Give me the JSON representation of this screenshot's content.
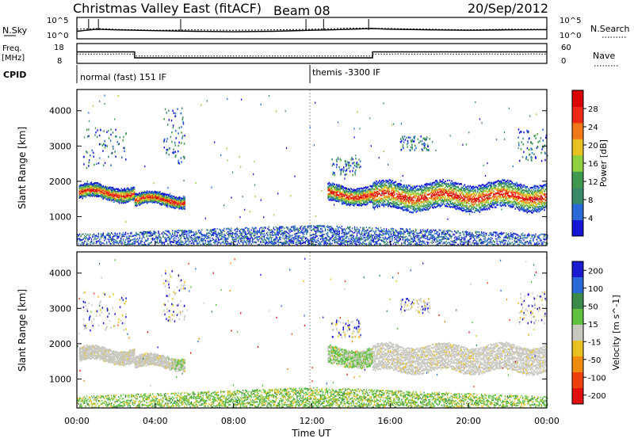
{
  "header": {
    "title": "Christmas Valley East (fitACF)",
    "beam": "Beam 08",
    "date": "20/Sep/2012"
  },
  "colors": {
    "power_scale": [
      "#1515d8",
      "#2a6ad8",
      "#3a8a6a",
      "#3f9a50",
      "#8fd040",
      "#e8c020",
      "#f07818",
      "#f02818",
      "#d80000"
    ],
    "velocity_scale": [
      "#1a1ad0",
      "#2a6ad8",
      "#3a8a4a",
      "#60c040",
      "#c8c8c0",
      "#e8c020",
      "#f08c10",
      "#f04010",
      "#e01010"
    ],
    "grey_scatter": "#c8c8c0"
  },
  "chart_data": [
    {
      "type": "line",
      "panel": "noise",
      "ylabel_left": "N.Sky",
      "ylabel_right": "N.Search",
      "left_ticks": [
        "10^5",
        "10^0"
      ],
      "right_ticks": [
        "10^5",
        "10^0"
      ],
      "x_range_hours": [
        0,
        24
      ],
      "series": [
        {
          "name": "N.Sky",
          "x": [
            0,
            0.5,
            1,
            2,
            3,
            4,
            6,
            8,
            10,
            12,
            13,
            14,
            15,
            16,
            18,
            20,
            22,
            24
          ],
          "values": [
            0.35,
            0.4,
            0.45,
            0.42,
            0.4,
            0.38,
            0.35,
            0.33,
            0.35,
            0.4,
            0.42,
            0.45,
            0.48,
            0.45,
            0.42,
            0.4,
            0.42,
            0.43
          ]
        },
        {
          "name": "N.Search",
          "x": [
            0,
            1,
            2,
            4,
            6,
            8,
            10,
            12,
            14,
            16,
            18,
            20,
            22,
            24
          ],
          "values": [
            0.45,
            0.48,
            0.44,
            0.4,
            0.42,
            0.4,
            0.42,
            0.45,
            0.5,
            0.48,
            0.45,
            0.42,
            0.45,
            0.44
          ]
        }
      ]
    },
    {
      "type": "line",
      "panel": "frequency",
      "ylabel_left": "Freq. [MHz]",
      "ylabel_right": "Nave",
      "left_ticks": [
        "18",
        "8"
      ],
      "right_ticks": [
        "60",
        "0"
      ],
      "series": [
        {
          "name": "Freq.",
          "x": [
            0,
            2.95,
            2.95,
            15.1,
            15.1,
            24
          ],
          "values": [
            13.8,
            13.8,
            10.8,
            10.8,
            13.8,
            13.8
          ],
          "unit": "MHz"
        },
        {
          "name": "Nave",
          "x": [
            0,
            2.95,
            2.95,
            15.1,
            15.1,
            24
          ],
          "values": [
            28,
            28,
            22,
            22,
            28,
            28
          ]
        }
      ]
    },
    {
      "type": "table",
      "panel": "cpid",
      "label": "CPID",
      "segments": [
        {
          "start_hour": 0.0,
          "label": "normal (fast) 151 IF"
        },
        {
          "start_hour": 11.9,
          "label": "themis -3300 IF"
        }
      ]
    },
    {
      "type": "heatmap",
      "panel": "power",
      "ylabel": "Slant Range [km]",
      "y_ticks": [
        1000,
        2000,
        3000,
        4000
      ],
      "ylim": [
        180,
        4600
      ],
      "colorbar_label": "Power [dB]",
      "colorbar_ticks": [
        4,
        8,
        12,
        16,
        20,
        24,
        28
      ],
      "echo_bands": [
        {
          "x_start": 0.1,
          "x_end": 2.95,
          "range_center": 1700,
          "range_width": 350
        },
        {
          "x_start": 2.95,
          "x_end": 5.5,
          "range_center": 1500,
          "range_width": 300
        },
        {
          "x_start": 12.8,
          "x_end": 15.1,
          "range_center": 1650,
          "range_width": 450
        },
        {
          "x_start": 15.1,
          "x_end": 24.0,
          "range_center": 1600,
          "range_width": 700
        }
      ]
    },
    {
      "type": "heatmap",
      "panel": "velocity",
      "ylabel": "Slant Range [km]",
      "y_ticks": [
        1000,
        2000,
        3000,
        4000
      ],
      "ylim": [
        180,
        4600
      ],
      "colorbar_label": "Velocity [m s^-1]",
      "colorbar_ticks": [
        200,
        100,
        50,
        15,
        -15,
        -50,
        -100,
        -200
      ],
      "x_ticks": [
        "00:00",
        "04:00",
        "08:00",
        "12:00",
        "16:00",
        "20:00",
        "00:00"
      ],
      "xlabel": "Time UT"
    }
  ]
}
